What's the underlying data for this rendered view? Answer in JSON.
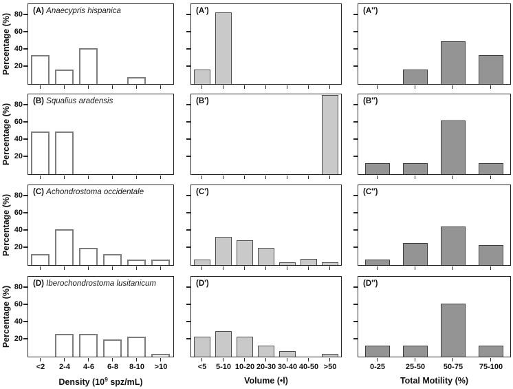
{
  "figure": {
    "y_axis": {
      "label": "Percentage (%)",
      "ticks": [
        80,
        60,
        40,
        20
      ],
      "range": [
        0,
        92
      ]
    },
    "x_axes": [
      {
        "name": "density",
        "label_segments": [
          {
            "text": "Density (10"
          },
          {
            "text": "9",
            "superscript": true
          },
          {
            "text": " spz/mL)"
          }
        ],
        "categories": [
          "<2",
          "2-4",
          "4-6",
          "6-8",
          "8-10",
          ">10"
        ]
      },
      {
        "name": "volume",
        "label_segments": [
          {
            "text": "Volume (•l)"
          }
        ],
        "categories": [
          "<5",
          "5-10",
          "10-20",
          "20-30",
          "30-40",
          "40-50",
          ">50"
        ]
      },
      {
        "name": "total-motility",
        "label_segments": [
          {
            "text": "Total Motility (%)"
          }
        ],
        "categories": [
          "0-25",
          "25-50",
          "50-75",
          "75-100"
        ]
      }
    ],
    "colors": {
      "panel_border": "#262626",
      "density_bar_fill": "#ffffff",
      "density_bar_border": "#7d7d7d",
      "volume_bar_fill": "#c9c9c9",
      "volume_bar_border": "#4d4d4d",
      "motility_bar_fill": "#949494",
      "motility_bar_border": "#3d3d3d"
    }
  },
  "chart_data": [
    {
      "type": "bar",
      "panel_label": "(A)",
      "species": "Anaecypris hispanica",
      "xlabel": "Density (10^9 spz/mL)",
      "ylabel": "Percentage (%)",
      "ylim": [
        0,
        92
      ],
      "grid": false,
      "categories": [
        "<2",
        "2-4",
        "4-6",
        "6-8",
        "8-10",
        ">10"
      ],
      "values": [
        33.3,
        16.7,
        41.7,
        0,
        8.3,
        0
      ]
    },
    {
      "type": "bar",
      "panel_label": "(A')",
      "species": "",
      "xlabel": "Volume (•l)",
      "ylabel": "Percentage (%)",
      "ylim": [
        0,
        92
      ],
      "grid": false,
      "categories": [
        "<5",
        "5-10",
        "10-20",
        "20-30",
        "30-40",
        "40-50",
        ">50"
      ],
      "values": [
        16.7,
        83.3,
        0,
        0,
        0,
        0,
        0
      ]
    },
    {
      "type": "bar",
      "panel_label": "(A'')",
      "species": "",
      "xlabel": "Total Motility (%)",
      "ylabel": "Percentage (%)",
      "ylim": [
        0,
        92
      ],
      "grid": false,
      "categories": [
        "0-25",
        "25-50",
        "50-75",
        "75-100"
      ],
      "values": [
        0,
        16.7,
        50,
        33.3
      ]
    },
    {
      "type": "bar",
      "panel_label": "(B)",
      "species": "Squalius aradensis",
      "xlabel": "Density (10^9 spz/mL)",
      "ylabel": "Percentage (%)",
      "ylim": [
        0,
        92
      ],
      "grid": false,
      "categories": [
        "<2",
        "2-4",
        "4-6",
        "6-8",
        "8-10",
        ">10"
      ],
      "values": [
        50,
        50,
        0,
        0,
        0,
        0
      ]
    },
    {
      "type": "bar",
      "panel_label": "(B')",
      "species": "",
      "xlabel": "Volume (•l)",
      "ylabel": "Percentage (%)",
      "ylim": [
        0,
        92
      ],
      "grid": false,
      "categories": [
        "<5",
        "5-10",
        "10-20",
        "20-30",
        "30-40",
        "40-50",
        ">50"
      ],
      "values": [
        0,
        0,
        0,
        0,
        0,
        0,
        100
      ]
    },
    {
      "type": "bar",
      "panel_label": "(B'')",
      "species": "",
      "xlabel": "Total Motility (%)",
      "ylabel": "Percentage (%)",
      "ylim": [
        0,
        92
      ],
      "grid": false,
      "categories": [
        "0-25",
        "25-50",
        "50-75",
        "75-100"
      ],
      "values": [
        12.5,
        12.5,
        62.5,
        12.5
      ]
    },
    {
      "type": "bar",
      "panel_label": "(C)",
      "species": "Achondrostoma occidentale",
      "xlabel": "Density (10^9 spz/mL)",
      "ylabel": "Percentage (%)",
      "ylim": [
        0,
        92
      ],
      "grid": false,
      "categories": [
        "<2",
        "2-4",
        "4-6",
        "6-8",
        "8-10",
        ">10"
      ],
      "values": [
        13,
        42,
        20,
        13,
        6.5,
        6.5
      ]
    },
    {
      "type": "bar",
      "panel_label": "(C')",
      "species": "",
      "xlabel": "Volume (•l)",
      "ylabel": "Percentage (%)",
      "ylim": [
        0,
        92
      ],
      "grid": false,
      "categories": [
        "<5",
        "5-10",
        "10-20",
        "20-30",
        "30-40",
        "40-50",
        ">50"
      ],
      "values": [
        6.5,
        33,
        29,
        20,
        3,
        7,
        3
      ]
    },
    {
      "type": "bar",
      "panel_label": "(C'')",
      "species": "",
      "xlabel": "Total Motility (%)",
      "ylabel": "Percentage (%)",
      "ylim": [
        0,
        92
      ],
      "grid": false,
      "categories": [
        "0-25",
        "25-50",
        "50-75",
        "75-100"
      ],
      "values": [
        6.5,
        26,
        45,
        23
      ]
    },
    {
      "type": "bar",
      "panel_label": "(D)",
      "species": "Iberochondrostoma lusitanicum",
      "xlabel": "Density (10^9 spz/mL)",
      "ylabel": "Percentage (%)",
      "ylim": [
        0,
        92
      ],
      "grid": false,
      "categories": [
        "<2",
        "2-4",
        "4-6",
        "6-8",
        "8-10",
        ">10"
      ],
      "values": [
        0,
        26.5,
        26.5,
        20,
        23.5,
        3
      ]
    },
    {
      "type": "bar",
      "panel_label": "(D')",
      "species": "",
      "xlabel": "Volume (•l)",
      "ylabel": "Percentage (%)",
      "ylim": [
        0,
        92
      ],
      "grid": false,
      "categories": [
        "<5",
        "5-10",
        "10-20",
        "20-30",
        "30-40",
        "40-50",
        ">50"
      ],
      "values": [
        23.5,
        30,
        23.5,
        13,
        6.5,
        0,
        3
      ]
    },
    {
      "type": "bar",
      "panel_label": "(D'')",
      "species": "",
      "xlabel": "Total Motility (%)",
      "ylabel": "Percentage (%)",
      "ylim": [
        0,
        92
      ],
      "grid": false,
      "categories": [
        "0-25",
        "25-50",
        "50-75",
        "75-100"
      ],
      "values": [
        13,
        13,
        62,
        13
      ]
    }
  ]
}
